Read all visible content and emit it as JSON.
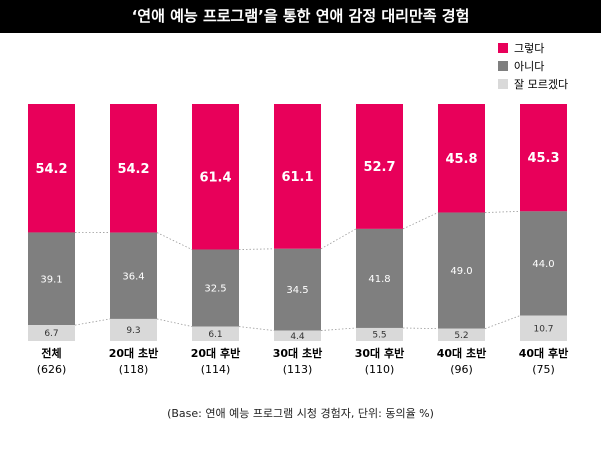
{
  "page": {
    "title": "‘연애 예능 프로그램’을 통한 연애 감정 대리만족 경험",
    "footnote": "(Base: 연애 예능 프로그램 시청 경험자, 단위: 동의율 %)"
  },
  "chart_data": {
    "type": "bar",
    "stacked": true,
    "percent_stacked": true,
    "title": "‘연애 예능 프로그램’을 통한 연애 감정 대리만족 경험",
    "ylim": [
      0,
      100
    ],
    "grid": false,
    "legend_position": "top-right",
    "categories": [
      {
        "label": "전체",
        "base": "(626)"
      },
      {
        "label": "20대 초반",
        "base": "(118)"
      },
      {
        "label": "20대 후반",
        "base": "(114)"
      },
      {
        "label": "30대 초반",
        "base": "(113)"
      },
      {
        "label": "30대 후반",
        "base": "(110)"
      },
      {
        "label": "40대 초반",
        "base": "(96)"
      },
      {
        "label": "40대 후반",
        "base": "(75)"
      }
    ],
    "series": [
      {
        "name": "그렇다",
        "color": "#e8005a",
        "label_color": "#ffffff",
        "values": [
          54.2,
          54.2,
          61.4,
          61.1,
          52.7,
          45.8,
          45.3
        ]
      },
      {
        "name": "아니다",
        "color": "#7f7f7f",
        "label_color": "#ffffff",
        "values": [
          39.1,
          36.4,
          32.5,
          34.5,
          41.8,
          49.0,
          44.0
        ]
      },
      {
        "name": "잘 모르겠다",
        "color": "#d9d9d9",
        "label_color": "#333333",
        "values": [
          6.7,
          9.3,
          6.1,
          4.4,
          5.5,
          5.2,
          10.7
        ]
      }
    ]
  }
}
